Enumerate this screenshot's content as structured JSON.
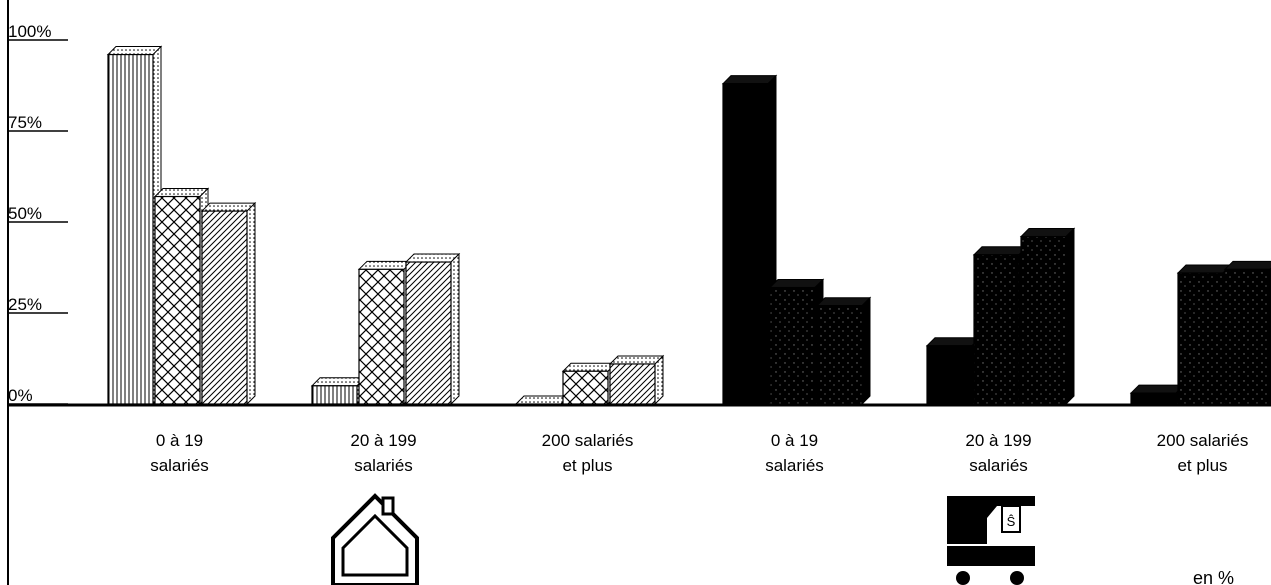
{
  "chart_data": {
    "type": "bar",
    "unit_note": "en %",
    "ylim": [
      0,
      100
    ],
    "yticks": [
      "100%",
      "75%",
      "50%",
      "25%",
      "0%"
    ],
    "groups": [
      {
        "icon": "house-icon",
        "categories": [
          {
            "label_lines": [
              "0 à 19",
              "salariés"
            ],
            "values": [
              96,
              57,
              53
            ]
          },
          {
            "label_lines": [
              "20 à 199",
              "salariés"
            ],
            "values": [
              5,
              37,
              39
            ]
          },
          {
            "label_lines": [
              "200 salariés",
              "et plus"
            ],
            "values": [
              0,
              9,
              11
            ]
          }
        ]
      },
      {
        "icon": "crane-icon",
        "categories": [
          {
            "label_lines": [
              "0 à 19",
              "salariés"
            ],
            "values": [
              88,
              32,
              27
            ]
          },
          {
            "label_lines": [
              "20 à 199",
              "salariés"
            ],
            "values": [
              16,
              41,
              46
            ]
          },
          {
            "label_lines": [
              "200 salariés",
              "et plus"
            ],
            "values": [
              3,
              36,
              37
            ]
          }
        ]
      }
    ],
    "series_patterns": [
      "vertical-lines",
      "crosshatch",
      "diagonal-lines"
    ],
    "colors": {
      "axis": "#000000",
      "group2_fill": "#000000",
      "bar_face": "#ffffff"
    }
  }
}
